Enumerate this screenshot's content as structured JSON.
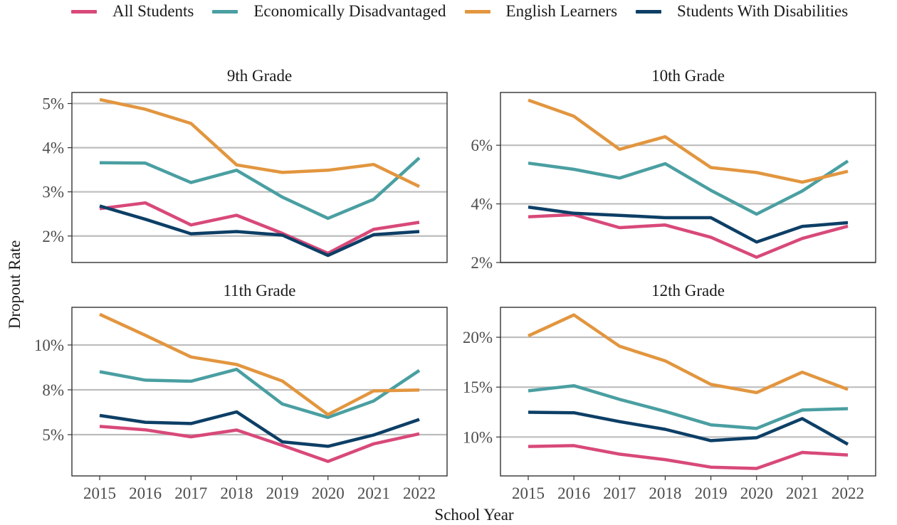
{
  "legend": {
    "items": [
      {
        "label": "All Students",
        "color": "#d8497a"
      },
      {
        "label": "Economically Disadvantaged",
        "color": "#4a9fa1"
      },
      {
        "label": "English Learners",
        "color": "#e2963f"
      },
      {
        "label": "Students With Disabilities",
        "color": "#0d3f66"
      }
    ]
  },
  "axis": {
    "xlabel": "School Year",
    "ylabel": "Dropout Rate"
  },
  "chart_data": [
    {
      "type": "line",
      "title": "9th Grade",
      "x": [
        2015,
        2016,
        2017,
        2018,
        2019,
        2020,
        2021,
        2022
      ],
      "ylim": [
        1.4,
        5.25
      ],
      "yticks": [
        2,
        3,
        4,
        5
      ],
      "show_x_ticks": false,
      "series": [
        {
          "name": "All Students",
          "values": [
            2.62,
            2.75,
            2.25,
            2.47,
            2.06,
            1.61,
            2.15,
            2.31
          ]
        },
        {
          "name": "Economically Disadvantaged",
          "values": [
            3.66,
            3.65,
            3.21,
            3.49,
            2.88,
            2.4,
            2.83,
            3.77
          ]
        },
        {
          "name": "English Learners",
          "values": [
            5.09,
            4.87,
            4.55,
            3.61,
            3.44,
            3.49,
            3.62,
            3.12
          ]
        },
        {
          "name": "Students With Disabilities",
          "values": [
            2.68,
            2.38,
            2.05,
            2.1,
            2.02,
            1.56,
            2.03,
            2.1
          ]
        }
      ]
    },
    {
      "type": "line",
      "title": "10th Grade",
      "x": [
        2015,
        2016,
        2017,
        2018,
        2019,
        2020,
        2021,
        2022
      ],
      "ylim": [
        2.0,
        7.8
      ],
      "yticks": [
        2,
        4,
        6
      ],
      "show_x_ticks": false,
      "series": [
        {
          "name": "All Students",
          "values": [
            3.56,
            3.63,
            3.19,
            3.28,
            2.86,
            2.18,
            2.82,
            3.24
          ]
        },
        {
          "name": "Economically Disadvantaged",
          "values": [
            5.39,
            5.18,
            4.88,
            5.37,
            4.46,
            3.65,
            4.44,
            5.46
          ]
        },
        {
          "name": "English Learners",
          "values": [
            7.54,
            6.99,
            5.86,
            6.29,
            5.24,
            5.07,
            4.74,
            5.11
          ]
        },
        {
          "name": "Students With Disabilities",
          "values": [
            3.89,
            3.68,
            3.61,
            3.53,
            3.53,
            2.7,
            3.23,
            3.36
          ]
        }
      ]
    },
    {
      "type": "line",
      "title": "11th Grade",
      "x": [
        2015,
        2016,
        2017,
        2018,
        2019,
        2020,
        2021,
        2022
      ],
      "ylim": [
        2.7,
        12.1
      ],
      "yticks": [
        5,
        7.5,
        10
      ],
      "yticklabels": [
        "5%",
        "8%",
        "10%"
      ],
      "show_x_ticks": true,
      "series": [
        {
          "name": "All Students",
          "values": [
            5.46,
            5.27,
            4.88,
            5.26,
            4.4,
            3.51,
            4.49,
            5.05
          ]
        },
        {
          "name": "Economically Disadvantaged",
          "values": [
            8.51,
            8.04,
            7.98,
            8.64,
            6.71,
            5.96,
            6.88,
            8.58
          ]
        },
        {
          "name": "English Learners",
          "values": [
            11.71,
            10.54,
            9.33,
            8.91,
            7.99,
            6.12,
            7.44,
            7.49
          ]
        },
        {
          "name": "Students With Disabilities",
          "values": [
            6.07,
            5.69,
            5.62,
            6.27,
            4.6,
            4.35,
            4.98,
            5.85
          ]
        }
      ]
    },
    {
      "type": "line",
      "title": "12th Grade",
      "x": [
        2015,
        2016,
        2017,
        2018,
        2019,
        2020,
        2021,
        2022
      ],
      "ylim": [
        6.1,
        23.0
      ],
      "yticks": [
        10,
        15,
        20
      ],
      "show_x_ticks": true,
      "series": [
        {
          "name": "All Students",
          "values": [
            9.05,
            9.14,
            8.28,
            7.73,
            6.98,
            6.85,
            8.45,
            8.2
          ]
        },
        {
          "name": "Economically Disadvantaged",
          "values": [
            14.63,
            15.14,
            13.77,
            12.57,
            11.22,
            10.86,
            12.7,
            12.84
          ]
        },
        {
          "name": "English Learners",
          "values": [
            20.13,
            22.24,
            19.1,
            17.63,
            15.27,
            14.45,
            16.5,
            14.77
          ]
        },
        {
          "name": "Students With Disabilities",
          "values": [
            12.48,
            12.43,
            11.54,
            10.77,
            9.64,
            9.93,
            11.85,
            9.27
          ]
        }
      ]
    }
  ]
}
